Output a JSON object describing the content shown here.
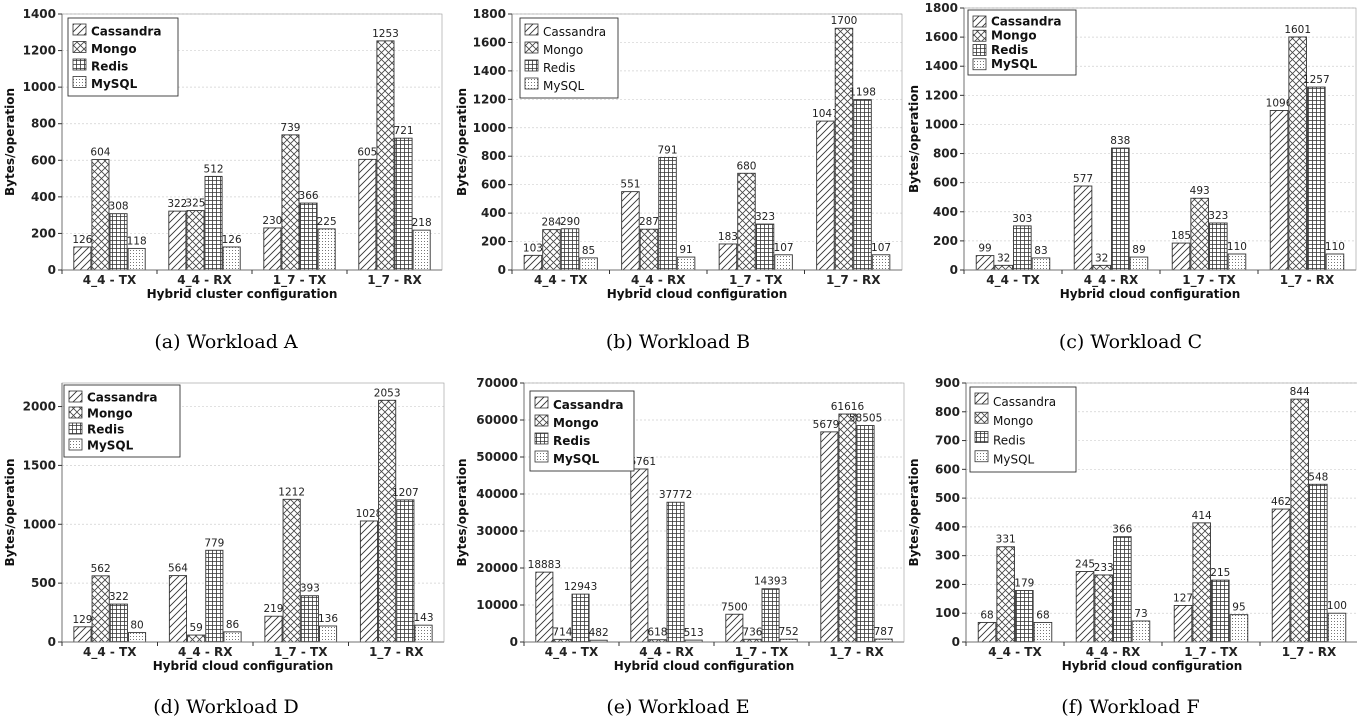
{
  "chart_data": [
    {
      "id": "a",
      "type": "bar",
      "caption_letter": "(a)",
      "caption": "Workload A",
      "xlabel": "Hybrid cluster configuration",
      "ylabel": "Bytes/operation",
      "categories": [
        "4_4 - TX",
        "4_4 - RX",
        "1_7 - TX",
        "1_7 - RX"
      ],
      "ylim": [
        0,
        1400
      ],
      "yticks": [
        0,
        200,
        400,
        600,
        800,
        1000,
        1200,
        1400
      ],
      "legend_bold": true,
      "legend_position": "top-left",
      "series": [
        {
          "name": "Cassandra",
          "values": [
            126,
            322,
            230,
            605
          ]
        },
        {
          "name": "Mongo",
          "values": [
            604,
            325,
            739,
            1253
          ]
        },
        {
          "name": "Redis",
          "values": [
            308,
            512,
            366,
            721
          ]
        },
        {
          "name": "MySQL",
          "values": [
            118,
            126,
            225,
            218
          ]
        }
      ]
    },
    {
      "id": "b",
      "type": "bar",
      "caption_letter": "(b)",
      "caption": "Workload B",
      "xlabel": "Hybrid cloud configuration",
      "ylabel": "Bytes/operation",
      "categories": [
        "4_4 - TX",
        "4_4 - RX",
        "1_7 - TX",
        "1_7 - RX"
      ],
      "ylim": [
        0,
        1800
      ],
      "yticks": [
        0,
        200,
        400,
        600,
        800,
        1000,
        1200,
        1400,
        1600,
        1800
      ],
      "legend_bold": false,
      "legend_position": "top-left",
      "series": [
        {
          "name": "Cassandra",
          "values": [
            103,
            551,
            183,
            1047
          ]
        },
        {
          "name": "Mongo",
          "values": [
            284,
            287,
            680,
            1700
          ]
        },
        {
          "name": "Redis",
          "values": [
            290,
            791,
            323,
            1198
          ]
        },
        {
          "name": "MySQL",
          "values": [
            85,
            91,
            107,
            107
          ]
        }
      ]
    },
    {
      "id": "c",
      "type": "bar",
      "caption_letter": "(c)",
      "caption": "Workload C",
      "xlabel": "Hybrid cloud configuration",
      "ylabel": "Bytes/operation",
      "categories": [
        "4_4 - TX",
        "4_4 - RX",
        "1_7 - TX",
        "1_7 - RX"
      ],
      "ylim": [
        0,
        1800
      ],
      "yticks": [
        0,
        200,
        400,
        600,
        800,
        1000,
        1200,
        1400,
        1600,
        1800
      ],
      "legend_bold": true,
      "legend_position": "top-left",
      "series": [
        {
          "name": "Cassandra",
          "values": [
            99,
            577,
            185,
            1096
          ]
        },
        {
          "name": "Mongo",
          "values": [
            32,
            32,
            493,
            1601
          ]
        },
        {
          "name": "Redis",
          "values": [
            303,
            838,
            323,
            1257
          ]
        },
        {
          "name": "MySQL",
          "values": [
            83,
            89,
            110,
            110
          ]
        }
      ]
    },
    {
      "id": "d",
      "type": "bar",
      "caption_letter": "(d)",
      "caption": "Workload D",
      "xlabel": "Hybrid cloud configuration",
      "ylabel": "Bytes/operation",
      "categories": [
        "4_4 - TX",
        "4_4 - RX",
        "1_7 - TX",
        "1_7 - RX"
      ],
      "ylim": [
        0,
        2200
      ],
      "yticks": [
        0,
        500,
        1000,
        1500,
        2000
      ],
      "legend_bold": true,
      "legend_position": "top-left",
      "series": [
        {
          "name": "Cassandra",
          "values": [
            129,
            564,
            219,
            1028
          ]
        },
        {
          "name": "Mongo",
          "values": [
            562,
            59,
            1212,
            2053
          ]
        },
        {
          "name": "Redis",
          "values": [
            322,
            779,
            393,
            1207
          ]
        },
        {
          "name": "MySQL",
          "values": [
            80,
            86,
            136,
            143
          ]
        }
      ]
    },
    {
      "id": "e",
      "type": "bar",
      "caption_letter": "(e)",
      "caption": "Workload E",
      "xlabel": "Hybrid cloud configuration",
      "ylabel": "Bytes/operation",
      "categories": [
        "4_4 - TX",
        "4_4 - RX",
        "1_7 - TX",
        "1_7 - RX"
      ],
      "ylim": [
        0,
        70000
      ],
      "yticks": [
        0,
        10000,
        20000,
        30000,
        40000,
        50000,
        60000,
        70000
      ],
      "legend_bold": true,
      "legend_position": "top-left",
      "series": [
        {
          "name": "Cassandra",
          "values": [
            18883,
            46761,
            7500,
            56790
          ]
        },
        {
          "name": "Mongo",
          "values": [
            714,
            618,
            736,
            61616
          ]
        },
        {
          "name": "Redis",
          "values": [
            12943,
            37772,
            14393,
            58505
          ]
        },
        {
          "name": "MySQL",
          "values": [
            482,
            513,
            752,
            787
          ]
        }
      ]
    },
    {
      "id": "f",
      "type": "bar",
      "caption_letter": "(f)",
      "caption": "Workload F",
      "xlabel": "Hybrid cloud configuration",
      "ylabel": "Bytes/operation",
      "categories": [
        "4_4 - TX",
        "4_4 - RX",
        "1_7 - TX",
        "1_7 - RX"
      ],
      "ylim": [
        0,
        900
      ],
      "yticks": [
        0,
        100,
        200,
        300,
        400,
        500,
        600,
        700,
        800,
        900
      ],
      "legend_bold": false,
      "legend_position": "top-left",
      "series": [
        {
          "name": "Cassandra",
          "values": [
            68,
            245,
            127,
            462
          ]
        },
        {
          "name": "Mongo",
          "values": [
            331,
            233,
            414,
            844
          ]
        },
        {
          "name": "Redis",
          "values": [
            179,
            366,
            215,
            548
          ]
        },
        {
          "name": "MySQL",
          "values": [
            68,
            73,
            95,
            100
          ]
        }
      ]
    }
  ]
}
